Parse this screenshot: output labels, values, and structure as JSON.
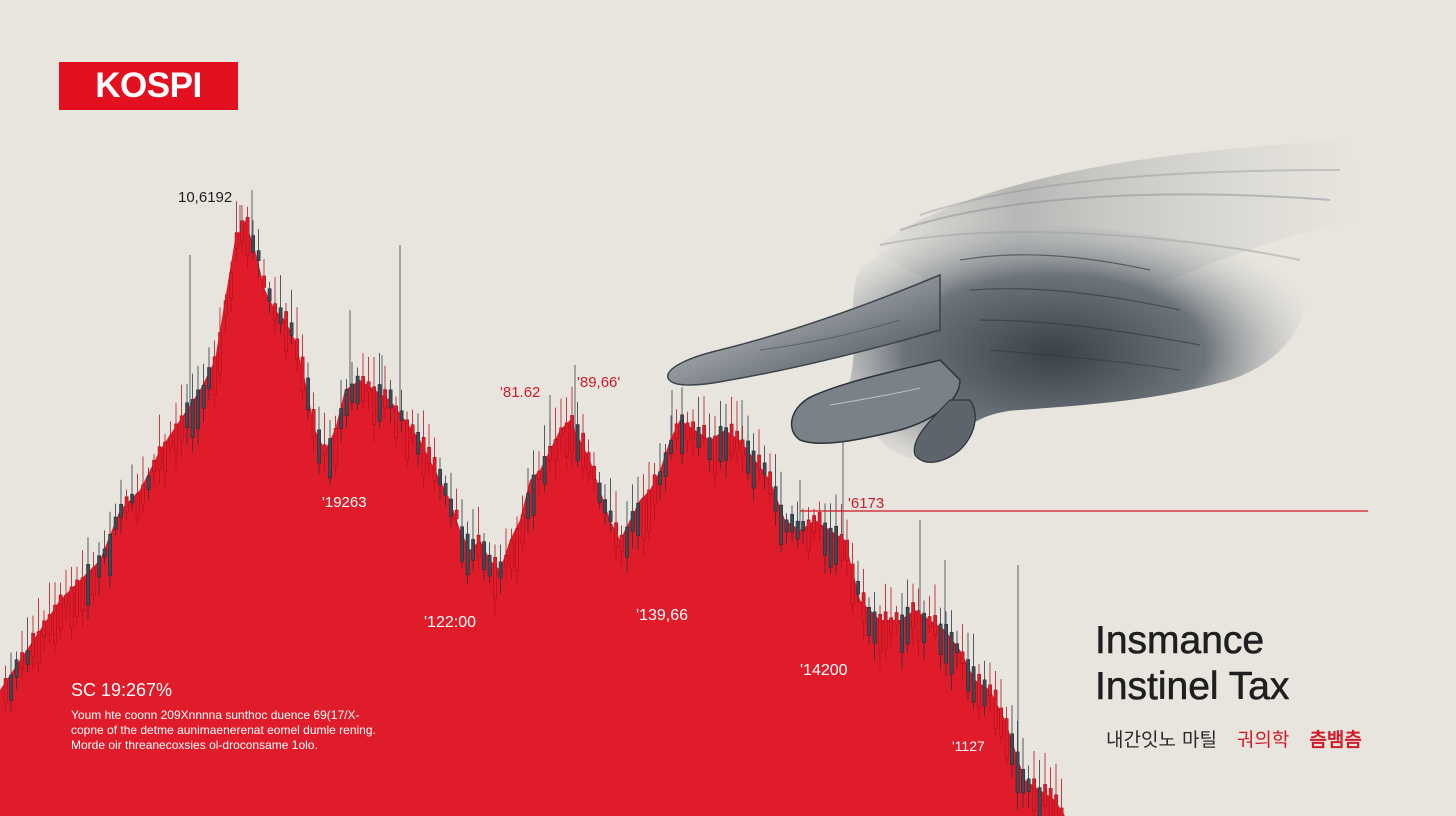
{
  "brand": {
    "logo_text": "KOSPI",
    "accent": "#e3101f"
  },
  "headline": {
    "line1": "Insmance",
    "line2": "Instinel Tax"
  },
  "korean_tags": [
    "내간잇노 마틸",
    "궈의학",
    "츰뱀츰"
  ],
  "stat": {
    "title": "SC 19:267%",
    "lines": [
      "Youm hte coonn 209Xnnnna sunthoc duence 69(17/X-",
      "copne of the detme aunimaenerenat eomel dumle rening.",
      "Morde oir threanecoxsies ol-droconsame 1olo."
    ]
  },
  "chart_data": {
    "type": "area",
    "title": "",
    "xlabel": "",
    "ylabel": "",
    "annotations": [
      {
        "text": "10,6192",
        "color": "#1f1f1f"
      },
      {
        "text": "'81.62",
        "color": "#d01c2a"
      },
      {
        "text": "'89,66'",
        "color": "#d01c2a"
      },
      {
        "text": "'19263",
        "color": "#ffffff"
      },
      {
        "text": "'6173",
        "color": "#d01c2a"
      },
      {
        "text": "'122:00",
        "color": "#ffffff"
      },
      {
        "text": "'139,66",
        "color": "#ffffff"
      },
      {
        "text": "'14200",
        "color": "#ffffff"
      },
      {
        "text": "'1127",
        "color": "#ffffff"
      }
    ],
    "colors": {
      "fill": "#e01b2a",
      "bear_candle": "#3e4a55",
      "bull_candle": "#e01b2a",
      "marker_line": "#d01c2a"
    }
  }
}
